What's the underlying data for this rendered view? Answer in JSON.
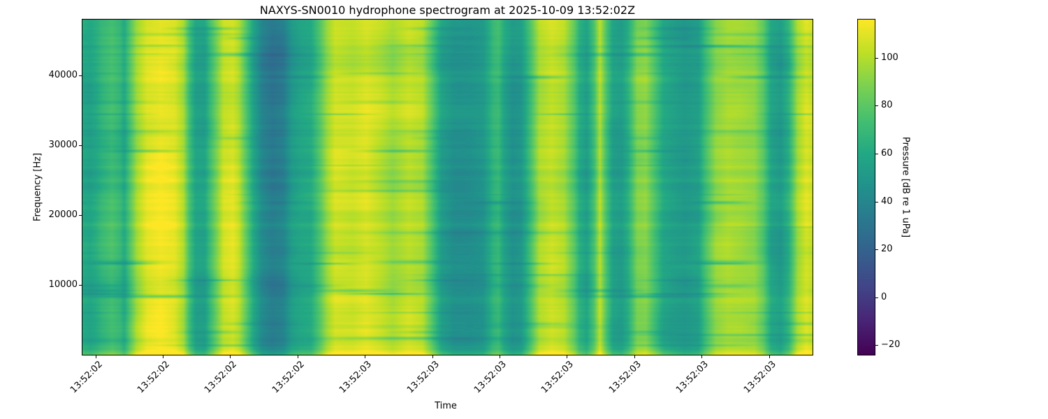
{
  "figure": {
    "background_color": "#ffffff",
    "text_color": "#000000"
  },
  "chart_data": {
    "type": "heatmap",
    "subtype": "spectrogram",
    "title": "NAXYS-SN0010 hydrophone spectrogram at 2025-10-09 13:52:02Z",
    "xlabel": "Time",
    "ylabel": "Frequency [Hz]",
    "grid": false,
    "legend": false,
    "x_tick_labels": [
      "13:52:02",
      "13:52:02",
      "13:52:02",
      "13:52:02",
      "13:52:03",
      "13:52:03",
      "13:52:03",
      "13:52:03",
      "13:52:03",
      "13:52:03",
      "13:52:03"
    ],
    "y_ticks_hz": [
      10000,
      20000,
      30000,
      40000
    ],
    "freq_range_hz": [
      0,
      48000
    ],
    "colorbar": {
      "label": "Pressure [dB re 1 uPa]",
      "ticks": [
        100,
        80,
        60,
        40,
        20,
        0,
        -20
      ],
      "vmin": -24,
      "vmax": 116,
      "colormap": "viridis",
      "colormap_stops": [
        [
          0.0,
          68,
          1,
          84
        ],
        [
          0.1,
          72,
          36,
          117
        ],
        [
          0.2,
          65,
          68,
          135
        ],
        [
          0.3,
          53,
          95,
          141
        ],
        [
          0.4,
          42,
          120,
          142
        ],
        [
          0.5,
          33,
          145,
          140
        ],
        [
          0.6,
          34,
          168,
          132
        ],
        [
          0.7,
          68,
          191,
          112
        ],
        [
          0.8,
          122,
          209,
          81
        ],
        [
          0.9,
          189,
          223,
          38
        ],
        [
          1.0,
          253,
          231,
          37
        ]
      ]
    },
    "time_profile_db": {
      "points": [
        [
          0.0,
          61
        ],
        [
          0.01,
          58
        ],
        [
          0.018,
          62
        ],
        [
          0.026,
          68
        ],
        [
          0.04,
          74
        ],
        [
          0.051,
          68
        ],
        [
          0.057,
          60
        ],
        [
          0.064,
          75
        ],
        [
          0.074,
          95
        ],
        [
          0.088,
          108
        ],
        [
          0.107,
          112
        ],
        [
          0.126,
          109
        ],
        [
          0.138,
          98
        ],
        [
          0.147,
          72
        ],
        [
          0.155,
          57
        ],
        [
          0.167,
          56
        ],
        [
          0.175,
          72
        ],
        [
          0.184,
          88
        ],
        [
          0.193,
          104
        ],
        [
          0.206,
          107
        ],
        [
          0.214,
          100
        ],
        [
          0.224,
          80
        ],
        [
          0.234,
          58
        ],
        [
          0.246,
          40
        ],
        [
          0.26,
          33
        ],
        [
          0.275,
          36
        ],
        [
          0.287,
          52
        ],
        [
          0.299,
          58
        ],
        [
          0.313,
          61
        ],
        [
          0.325,
          78
        ],
        [
          0.335,
          95
        ],
        [
          0.346,
          106
        ],
        [
          0.37,
          104
        ],
        [
          0.389,
          108
        ],
        [
          0.409,
          102
        ],
        [
          0.425,
          96
        ],
        [
          0.447,
          103
        ],
        [
          0.466,
          99
        ],
        [
          0.478,
          80
        ],
        [
          0.492,
          55
        ],
        [
          0.509,
          47
        ],
        [
          0.53,
          47
        ],
        [
          0.549,
          50
        ],
        [
          0.563,
          68
        ],
        [
          0.57,
          71
        ],
        [
          0.578,
          58
        ],
        [
          0.589,
          49
        ],
        [
          0.601,
          51
        ],
        [
          0.612,
          70
        ],
        [
          0.626,
          98
        ],
        [
          0.643,
          104
        ],
        [
          0.66,
          99
        ],
        [
          0.674,
          80
        ],
        [
          0.681,
          64
        ],
        [
          0.691,
          56
        ],
        [
          0.701,
          75
        ],
        [
          0.709,
          101
        ],
        [
          0.717,
          78
        ],
        [
          0.727,
          56
        ],
        [
          0.739,
          54
        ],
        [
          0.748,
          65
        ],
        [
          0.76,
          90
        ],
        [
          0.772,
          92
        ],
        [
          0.785,
          75
        ],
        [
          0.796,
          60
        ],
        [
          0.808,
          56
        ],
        [
          0.825,
          52
        ],
        [
          0.844,
          56
        ],
        [
          0.854,
          74
        ],
        [
          0.868,
          93
        ],
        [
          0.884,
          98
        ],
        [
          0.903,
          96
        ],
        [
          0.921,
          93
        ],
        [
          0.933,
          80
        ],
        [
          0.944,
          57
        ],
        [
          0.957,
          52
        ],
        [
          0.968,
          65
        ],
        [
          0.98,
          96
        ],
        [
          0.992,
          107
        ],
        [
          1.0,
          103
        ]
      ]
    }
  }
}
